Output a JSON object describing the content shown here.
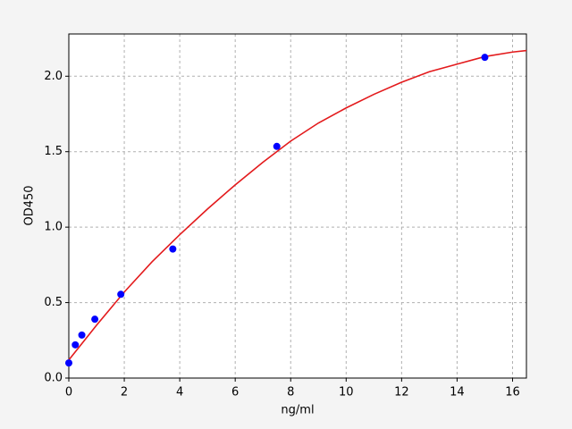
{
  "chart_data": {
    "type": "scatter",
    "xlabel": "ng/ml",
    "ylabel": "OD450",
    "xlim": [
      0,
      16.5
    ],
    "ylim": [
      0,
      2.28
    ],
    "xticks": [
      0,
      2,
      4,
      6,
      8,
      10,
      12,
      14,
      16
    ],
    "yticks": [
      {
        "value": 0,
        "label": "0.0"
      },
      {
        "value": 0.5,
        "label": "0.5"
      },
      {
        "value": 1,
        "label": "1.0"
      },
      {
        "value": 1.5,
        "label": "1.5"
      },
      {
        "value": 2,
        "label": "2.0"
      }
    ],
    "grid": true,
    "series": [
      {
        "type": "scatter",
        "color": "#0000ff",
        "x": [
          0,
          0.234,
          0.469,
          0.938,
          1.875,
          3.75,
          7.5,
          15
        ],
        "values": [
          0.1,
          0.22,
          0.285,
          0.39,
          0.555,
          0.855,
          1.535,
          2.125
        ]
      },
      {
        "type": "line",
        "color": "#e31a1c",
        "x": [
          0,
          1,
          2,
          3,
          4,
          5,
          6,
          7,
          8,
          9,
          10,
          11,
          12,
          13,
          14,
          15,
          16,
          16.5
        ],
        "values": [
          0.12,
          0.35,
          0.57,
          0.77,
          0.95,
          1.12,
          1.28,
          1.43,
          1.57,
          1.69,
          1.79,
          1.88,
          1.96,
          2.03,
          2.08,
          2.13,
          2.16,
          2.17
        ]
      }
    ]
  }
}
